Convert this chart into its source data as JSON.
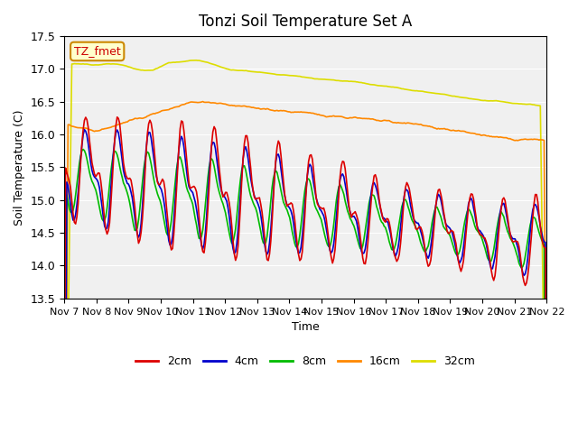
{
  "title": "Tonzi Soil Temperature Set A",
  "xlabel": "Time",
  "ylabel": "Soil Temperature (C)",
  "annotation": "TZ_fmet",
  "ylim": [
    13.5,
    17.5
  ],
  "xlim": [
    0,
    360
  ],
  "x_tick_labels": [
    "Nov 7",
    "Nov 8",
    "Nov 9",
    "Nov 10",
    "Nov 11",
    "Nov 12",
    "Nov 13",
    "Nov 14",
    "Nov 15",
    "Nov 16",
    "Nov 17",
    "Nov 18",
    "Nov 19",
    "Nov 20",
    "Nov 21",
    "Nov 22"
  ],
  "colors": {
    "2cm": "#dd0000",
    "4cm": "#0000cc",
    "8cm": "#00bb00",
    "16cm": "#ff8800",
    "32cm": "#dddd00"
  },
  "bg_color": "#e8e8e8",
  "plot_bg": "#f0f0f0",
  "linewidth": 1.2
}
